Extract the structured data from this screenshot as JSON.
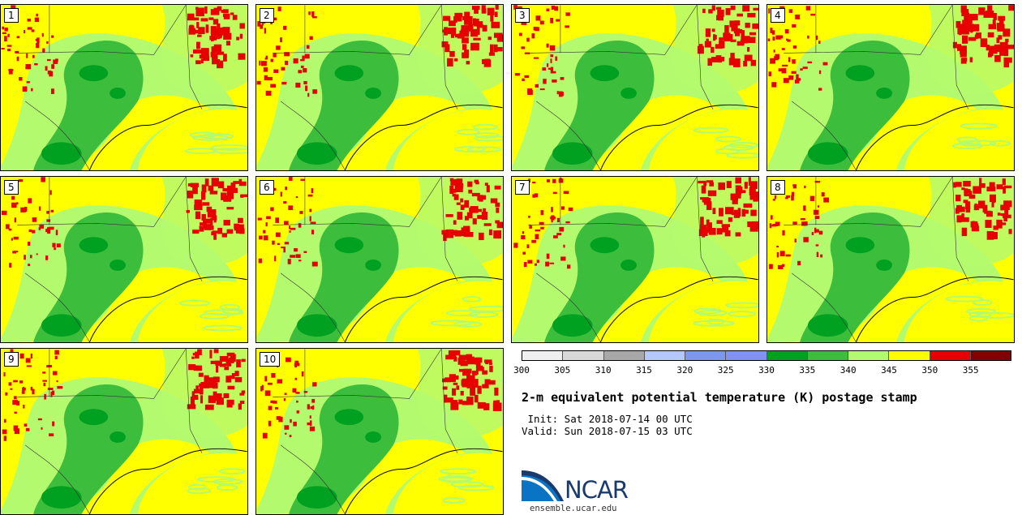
{
  "panels": [
    {
      "label": "1"
    },
    {
      "label": "2"
    },
    {
      "label": "3"
    },
    {
      "label": "4"
    },
    {
      "label": "5"
    },
    {
      "label": "6"
    },
    {
      "label": "7"
    },
    {
      "label": "8"
    },
    {
      "label": "9"
    },
    {
      "label": "10"
    }
  ],
  "colorbar": {
    "colors": [
      "#f0f0f0",
      "#d8d8d8",
      "#a8a8a8",
      "#b4c8fa",
      "#7d96f0",
      "#8291f5",
      "#00a020",
      "#3cbe3c",
      "#b4fa6e",
      "#ffff00",
      "#e60000",
      "#820000"
    ],
    "ticks": [
      "300",
      "305",
      "310",
      "315",
      "320",
      "325",
      "330",
      "335",
      "340",
      "345",
      "350",
      "355"
    ]
  },
  "title": "2-m equivalent potential temperature (K) postage stamp",
  "init_line": " Init: Sat 2018-07-14 00 UTC",
  "valid_line": "Valid: Sun 2018-07-15 03 UTC",
  "logo": {
    "text": "NCAR",
    "url": "ensemble.ucar.edu",
    "primary_color": "#1a3a6e",
    "accent_color": "#0a74c4"
  }
}
